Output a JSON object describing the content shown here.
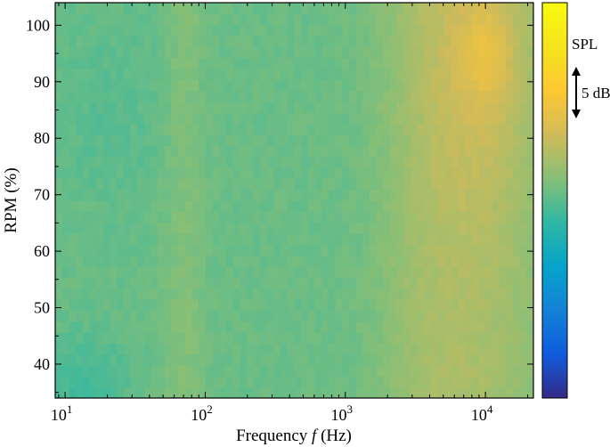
{
  "chart_data": {
    "type": "heatmap",
    "title": "",
    "xlabel_prefix": "Frequency ",
    "xlabel_var": "f",
    "xlabel_suffix": " (Hz)",
    "ylabel": "RPM (%)",
    "x_scale": "log",
    "xlim": [
      8.5,
      22000
    ],
    "ylim": [
      34,
      104
    ],
    "x_ticks": [
      {
        "value": 10,
        "base": "10",
        "exp": "1"
      },
      {
        "value": 100,
        "base": "10",
        "exp": "2"
      },
      {
        "value": 1000,
        "base": "10",
        "exp": "3"
      },
      {
        "value": 10000,
        "base": "10",
        "exp": "4"
      }
    ],
    "y_ticks": [
      40,
      50,
      60,
      70,
      80,
      90,
      100
    ],
    "grid": false,
    "colorbar": {
      "label": "SPL",
      "scale_label": "5 dB",
      "colormap": "parula",
      "colors": [
        "#352a87",
        "#0f5cdd",
        "#1481d6",
        "#06a4ca",
        "#2eb7a4",
        "#87bf77",
        "#d1bb59",
        "#fec832",
        "#f5e41d",
        "#f9fb0e"
      ]
    },
    "field": {
      "description_rpm": [
        34,
        104
      ],
      "base_level": 0.52,
      "hot_spot": {
        "freq": 10000,
        "rpm": 95,
        "level": 0.76
      },
      "cool_spot": {
        "freq": 12,
        "rpm": 36,
        "level": 0.44
      }
    }
  }
}
